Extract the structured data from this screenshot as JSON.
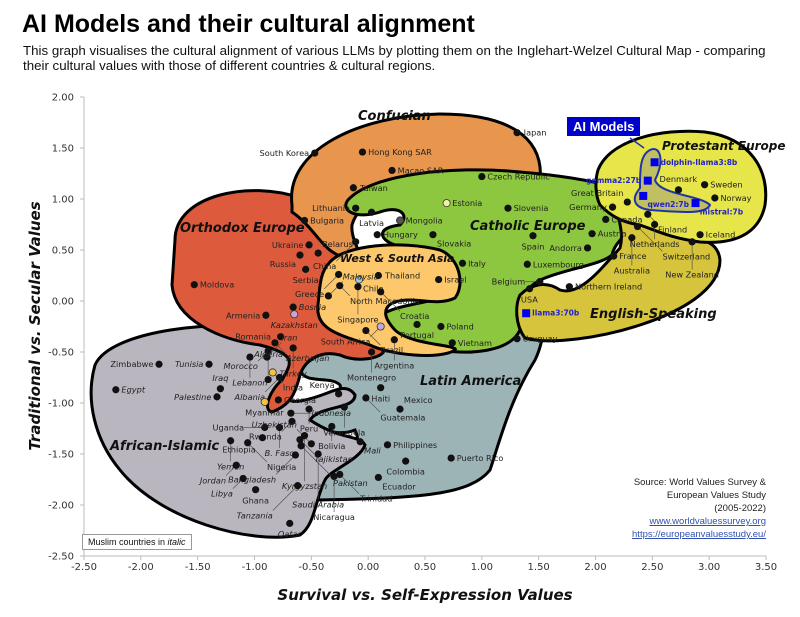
{
  "title": "AI Models and their cultural alignment",
  "subtitle": "This graph visualises the cultural alignment of various LLMs by plotting them on the Inglehart-Welzel Cultural Map - comparing their cultural values with those of different countries & cultural regions.",
  "ai_badge": "AI Models",
  "legend_note": {
    "prefix": "Muslim countries in ",
    "italic": "italic"
  },
  "source": {
    "line1": "Source: World Values Survey &",
    "line2": "European Values Study",
    "line3": "(2005-2022)",
    "link1": "www.worldvaluessurvey.org",
    "link2": "https://europeanvaluesstudy.eu/"
  },
  "chart_data": {
    "type": "scatter",
    "xlabel": "Survival vs. Self-Expression Values",
    "ylabel": "Traditional vs. Secular Values",
    "xlim": [
      -2.5,
      3.5
    ],
    "ylim": [
      -2.5,
      2.0
    ],
    "xticks": [
      "-2.50",
      "-2.00",
      "-1.50",
      "-1.00",
      "-0.50",
      "0.00",
      "0.50",
      "1.00",
      "1.50",
      "2.00",
      "2.50",
      "3.00",
      "3.50"
    ],
    "yticks": [
      "2.00",
      "1.50",
      "1.00",
      "0.50",
      "0.00",
      "-0.50",
      "-1.00",
      "-1.50",
      "-2.00",
      "-2.50"
    ],
    "grid": false,
    "colors": {
      "dot": "#111111",
      "ai_model": "#0000ee",
      "ai_outline": "#2233aa"
    },
    "regions": [
      {
        "name": "Confucian",
        "color": "#E8954D"
      },
      {
        "name": "Orthodox Europe",
        "color": "#DE5A3C"
      },
      {
        "name": "Catholic Europe",
        "color": "#8DC63F"
      },
      {
        "name": "West & South Asia",
        "color": "#FCC86B"
      },
      {
        "name": "Latin America",
        "color": "#9DB4B7"
      },
      {
        "name": "African-Islamic",
        "color": "#B9B6BF"
      },
      {
        "name": "English-Speaking",
        "color": "#D6C43C"
      },
      {
        "name": "Protestant Europe",
        "color": "#E6E54A"
      }
    ],
    "ai_models": [
      {
        "name": "dolphin-llama3:8b",
        "x": 2.52,
        "y": 1.36
      },
      {
        "name": "gemma2:27b",
        "x": 2.46,
        "y": 1.18
      },
      {
        "name": "qwen2:7b",
        "x": 2.42,
        "y": 1.03
      },
      {
        "name": "mistral:7b",
        "x": 2.88,
        "y": 0.96
      },
      {
        "name": "llama3:70b",
        "x": 1.39,
        "y": -0.12
      }
    ],
    "countries": [
      {
        "name": "Japan",
        "x": 1.31,
        "y": 1.65
      },
      {
        "name": "South Korea",
        "x": -0.47,
        "y": 1.45
      },
      {
        "name": "Hong Kong SAR",
        "x": -0.05,
        "y": 1.46
      },
      {
        "name": "Macao SAR",
        "x": 0.21,
        "y": 1.28
      },
      {
        "name": "Taiwan",
        "x": -0.13,
        "y": 1.11
      },
      {
        "name": "Czech Republic",
        "x": 1.0,
        "y": 1.22
      },
      {
        "name": "Lithuania",
        "x": -0.11,
        "y": 0.91
      },
      {
        "name": "Latvia",
        "x": 0.03,
        "y": 0.87
      },
      {
        "name": "Estonia",
        "x": 0.69,
        "y": 0.96,
        "color": "#F4EFA0"
      },
      {
        "name": "Mongolia",
        "x": 0.28,
        "y": 0.79,
        "color": "#555555"
      },
      {
        "name": "Hungary",
        "x": 0.08,
        "y": 0.65
      },
      {
        "name": "Slovakia",
        "x": 0.57,
        "y": 0.65
      },
      {
        "name": "Slovenia",
        "x": 1.23,
        "y": 0.91
      },
      {
        "name": "Spain",
        "x": 1.45,
        "y": 0.64
      },
      {
        "name": "Italy",
        "x": 0.83,
        "y": 0.37
      },
      {
        "name": "Luxembourg",
        "x": 1.4,
        "y": 0.36
      },
      {
        "name": "Belgium",
        "x": 1.51,
        "y": 0.19
      },
      {
        "name": "USA",
        "x": 1.42,
        "y": 0.12
      },
      {
        "name": "Northern Ireland",
        "x": 1.77,
        "y": 0.14
      },
      {
        "name": "Austria",
        "x": 1.97,
        "y": 0.66
      },
      {
        "name": "Andorra",
        "x": 1.93,
        "y": 0.52
      },
      {
        "name": "France",
        "x": 2.16,
        "y": 0.44
      },
      {
        "name": "Sweden",
        "x": 2.96,
        "y": 1.14
      },
      {
        "name": "Denmark",
        "x": 2.73,
        "y": 1.09
      },
      {
        "name": "Norway",
        "x": 3.05,
        "y": 1.01
      },
      {
        "name": "Germany",
        "x": 2.15,
        "y": 0.92
      },
      {
        "name": "Great Britain",
        "x": 2.28,
        "y": 0.97
      },
      {
        "name": "Canada",
        "x": 2.09,
        "y": 0.8
      },
      {
        "name": "Finland",
        "x": 2.46,
        "y": 0.85
      },
      {
        "name": "Netherlands",
        "x": 2.52,
        "y": 0.75
      },
      {
        "name": "Switzerland",
        "x": 2.37,
        "y": 0.73
      },
      {
        "name": "Australia",
        "x": 2.32,
        "y": 0.62
      },
      {
        "name": "Iceland",
        "x": 2.92,
        "y": 0.65
      },
      {
        "name": "New Zealand",
        "x": 2.85,
        "y": 0.58
      },
      {
        "name": "Bulgaria",
        "x": -0.56,
        "y": 0.79
      },
      {
        "name": "Ukraine",
        "x": -0.52,
        "y": 0.55
      },
      {
        "name": "Belarus",
        "x": -0.44,
        "y": 0.47
      },
      {
        "name": "Russia",
        "x": -0.6,
        "y": 0.45
      },
      {
        "name": "Serbia",
        "x": -0.55,
        "y": 0.31
      },
      {
        "name": "Greece",
        "x": -0.26,
        "y": 0.26
      },
      {
        "name": "North Macedonia",
        "x": -0.25,
        "y": 0.15
      },
      {
        "name": "Moldova",
        "x": -1.53,
        "y": 0.16
      },
      {
        "name": "Armenia",
        "x": -0.9,
        "y": -0.14
      },
      {
        "name": "Bosnia",
        "x": -0.66,
        "y": -0.06,
        "italic": true
      },
      {
        "name": "Kazakhstan",
        "x": -0.65,
        "y": -0.13,
        "italic": true,
        "color": "#C6A8D8"
      },
      {
        "name": "China",
        "x": -0.11,
        "y": 0.58
      },
      {
        "name": "Thailand",
        "x": 0.09,
        "y": 0.25
      },
      {
        "name": "Chile",
        "x": -0.08,
        "y": 0.21,
        "color": "#A6C8E0"
      },
      {
        "name": "Singapore",
        "x": -0.09,
        "y": 0.14
      },
      {
        "name": "Malaysia",
        "x": -0.35,
        "y": 0.05,
        "italic": true
      },
      {
        "name": "Croatia",
        "x": 0.11,
        "y": 0.09
      },
      {
        "name": "Israel",
        "x": 0.62,
        "y": 0.21
      },
      {
        "name": "Portugal",
        "x": 0.43,
        "y": -0.23
      },
      {
        "name": "Poland",
        "x": 0.64,
        "y": -0.25
      },
      {
        "name": "South Africa",
        "x": 0.11,
        "y": -0.25,
        "color": "#C6A8D8"
      },
      {
        "name": "Brazil",
        "x": -0.02,
        "y": -0.29
      },
      {
        "name": "Argentina",
        "x": 0.23,
        "y": -0.38
      },
      {
        "name": "Vietnam",
        "x": 0.74,
        "y": -0.41
      },
      {
        "name": "Uruguay",
        "x": 1.31,
        "y": -0.37
      },
      {
        "name": "Romania",
        "x": -0.77,
        "y": -0.35
      },
      {
        "name": "Azerbaijan",
        "x": -0.82,
        "y": -0.41,
        "italic": true
      },
      {
        "name": "Morocco",
        "x": -0.88,
        "y": -0.49,
        "italic": true
      },
      {
        "name": "Turkey",
        "x": -0.66,
        "y": -0.46,
        "italic": true
      },
      {
        "name": "Iran",
        "x": -0.89,
        "y": -0.55,
        "italic": true
      },
      {
        "name": "Lebanon",
        "x": -1.04,
        "y": -0.55,
        "italic": true
      },
      {
        "name": "Tunisia",
        "x": -1.4,
        "y": -0.62,
        "italic": true
      },
      {
        "name": "Zimbabwe",
        "x": -1.84,
        "y": -0.62
      },
      {
        "name": "Egypt",
        "x": -2.22,
        "y": -0.87,
        "italic": true
      },
      {
        "name": "India",
        "x": -0.84,
        "y": -0.7,
        "color": "#F5C242"
      },
      {
        "name": "Albania",
        "x": -0.78,
        "y": -0.75,
        "italic": true
      },
      {
        "name": "Algeria",
        "x": -0.88,
        "y": -0.77,
        "italic": true
      },
      {
        "name": "Iraq",
        "x": -1.3,
        "y": -0.86,
        "italic": true
      },
      {
        "name": "Palestine",
        "x": -1.33,
        "y": -0.94,
        "italic": true
      },
      {
        "name": "Myanmar",
        "x": -0.91,
        "y": -0.99,
        "color": "#F5C242"
      },
      {
        "name": "Georgia",
        "x": -0.79,
        "y": -0.97
      },
      {
        "name": "Indonesia",
        "x": -0.68,
        "y": -1.1,
        "italic": true
      },
      {
        "name": "Montenegro",
        "x": 0.03,
        "y": -0.5
      },
      {
        "name": "Kenya",
        "x": -0.26,
        "y": -0.91
      },
      {
        "name": "Haiti",
        "x": 0.11,
        "y": -0.85
      },
      {
        "name": "Guatemala",
        "x": -0.02,
        "y": -0.95
      },
      {
        "name": "Venezuela",
        "x": -0.21,
        "y": -1.04
      },
      {
        "name": "Mexico",
        "x": 0.28,
        "y": -1.06
      },
      {
        "name": "Peru",
        "x": -0.52,
        "y": -1.06
      },
      {
        "name": "Bolivia",
        "x": -0.32,
        "y": -1.23
      },
      {
        "name": "Rwanda",
        "x": -0.67,
        "y": -1.18
      },
      {
        "name": "Uganda",
        "x": -0.91,
        "y": -1.24
      },
      {
        "name": "B. Faso",
        "x": -0.78,
        "y": -1.24,
        "italic": true
      },
      {
        "name": "Ethiopia",
        "x": -0.93,
        "y": -1.34
      },
      {
        "name": "Yemen",
        "x": -1.21,
        "y": -1.37,
        "italic": true
      },
      {
        "name": "Nigeria",
        "x": -1.06,
        "y": -1.39
      },
      {
        "name": "Tajikistan",
        "x": -0.6,
        "y": -1.36,
        "italic": true
      },
      {
        "name": "Kyrgyzstan",
        "x": -0.56,
        "y": -1.32,
        "italic": true
      },
      {
        "name": "Pakistan",
        "x": -0.59,
        "y": -1.42,
        "italic": true
      },
      {
        "name": "Uzbekistan",
        "x": -0.5,
        "y": -1.4,
        "italic": true
      },
      {
        "name": "Mali",
        "x": -0.07,
        "y": -1.38,
        "italic": true
      },
      {
        "name": "Philippines",
        "x": 0.17,
        "y": -1.41
      },
      {
        "name": "Bangladesh",
        "x": -0.64,
        "y": -1.51,
        "italic": true
      },
      {
        "name": "Saudi Arabia",
        "x": -0.44,
        "y": -1.5,
        "italic": true
      },
      {
        "name": "Jordan",
        "x": -1.16,
        "y": -1.61,
        "italic": true
      },
      {
        "name": "Colombia",
        "x": 0.33,
        "y": -1.57
      },
      {
        "name": "Puerto Rico",
        "x": 0.73,
        "y": -1.54
      },
      {
        "name": "Ecuador",
        "x": 0.09,
        "y": -1.73
      },
      {
        "name": "Trinidad",
        "x": -0.25,
        "y": -1.7
      },
      {
        "name": "Nicaragua",
        "x": -0.3,
        "y": -1.72
      },
      {
        "name": "Libya",
        "x": -1.1,
        "y": -1.74,
        "italic": true
      },
      {
        "name": "Ghana",
        "x": -0.99,
        "y": -1.85
      },
      {
        "name": "Tanzania",
        "x": -0.62,
        "y": -1.81,
        "italic": true
      },
      {
        "name": "Qatar",
        "x": -0.69,
        "y": -2.18,
        "italic": true
      }
    ]
  }
}
